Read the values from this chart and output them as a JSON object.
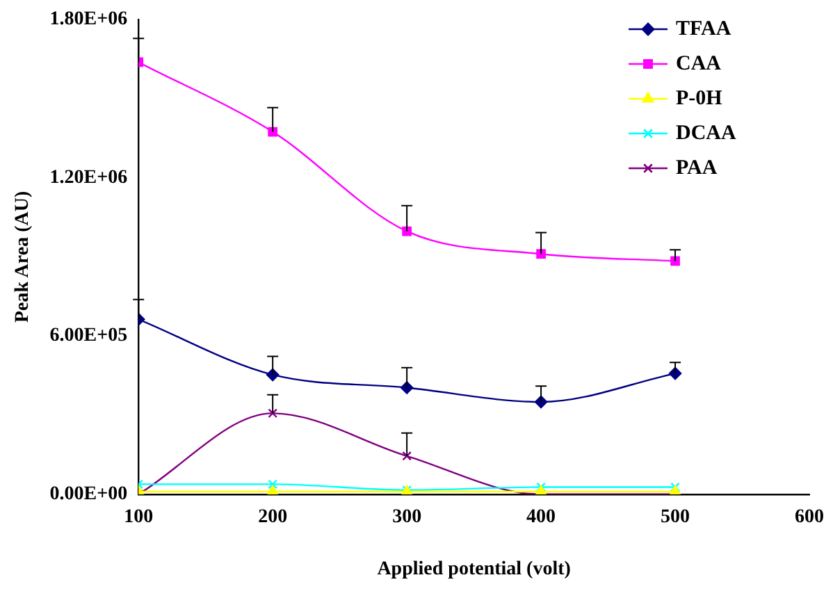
{
  "chart_data": {
    "type": "line",
    "xlabel": "Applied potential (volt)",
    "ylabel": "Peak Area (AU)",
    "x": [
      100,
      200,
      300,
      400,
      500
    ],
    "xlim": [
      100,
      600
    ],
    "xticks": [
      100,
      200,
      300,
      400,
      500,
      600
    ],
    "ylim": [
      0,
      1800000
    ],
    "yticks": [
      {
        "value": 0,
        "label": "0.00E+00"
      },
      {
        "value": 600000,
        "label": "6.00E+05"
      },
      {
        "value": 1200000,
        "label": "1.20E+06"
      },
      {
        "value": 1800000,
        "label": "1.80E+06"
      }
    ],
    "grid": false,
    "legend": "top right",
    "series": [
      {
        "name": "TFAA",
        "color": "#000080",
        "marker": "diamond",
        "values": [
          663000,
          453000,
          404000,
          350000,
          458000
        ],
        "errors": [
          [
            663000,
            738000
          ],
          [
            453000,
            523000
          ],
          [
            404000,
            480000
          ],
          [
            350000,
            410000
          ],
          [
            458000,
            500000
          ]
        ]
      },
      {
        "name": "CAA",
        "color": "#ff00ff",
        "marker": "square",
        "values": [
          1638000,
          1374000,
          997000,
          911000,
          884000
        ],
        "errors": [
          [
            1638000,
            1728000
          ],
          [
            1374000,
            1466000
          ],
          [
            997000,
            1094000
          ],
          [
            911000,
            992000
          ],
          [
            884000,
            927000
          ]
        ]
      },
      {
        "name": "P-0H",
        "color": "#ffff00",
        "marker": "triangle",
        "values": [
          10000,
          10000,
          10000,
          10000,
          10000
        ]
      },
      {
        "name": "DCAA",
        "color": "#00ffff",
        "marker": "cross",
        "values": [
          38000,
          38000,
          16000,
          27000,
          27000
        ]
      },
      {
        "name": "PAA",
        "color": "#800080",
        "marker": "cross",
        "values": [
          0,
          307000,
          145000,
          0,
          0
        ],
        "errors": [
          null,
          [
            307000,
            377000
          ],
          [
            145000,
            232000
          ],
          null,
          null
        ]
      }
    ]
  }
}
